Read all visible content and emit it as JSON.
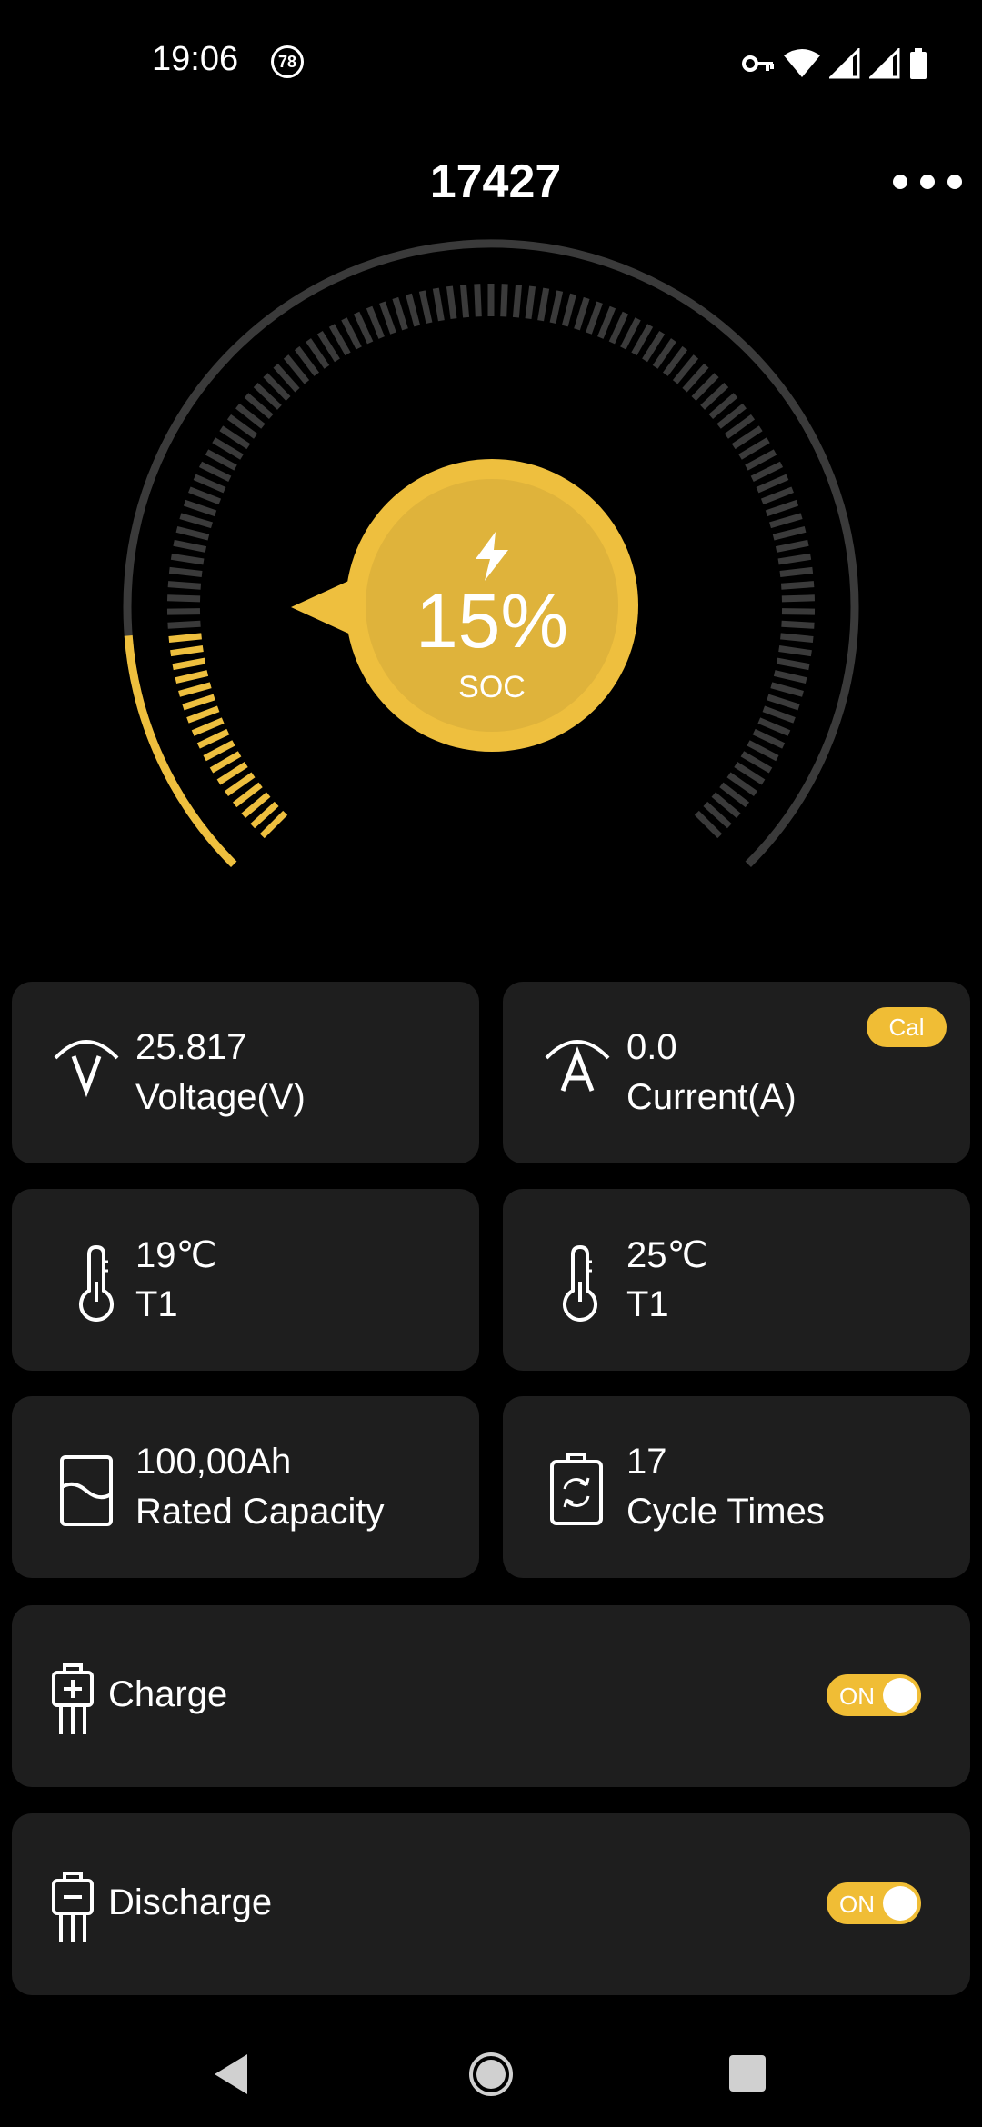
{
  "status_bar": {
    "time": "19:06",
    "notification_badge": "78",
    "icons": [
      "vpn-key-icon",
      "wifi-icon",
      "signal-icon",
      "signal-icon",
      "battery-icon"
    ]
  },
  "header": {
    "title": "17427",
    "menu_icon": "more-horizontal-icon"
  },
  "gauge": {
    "soc_value": "15%",
    "soc_label": "SOC",
    "soc_fraction": 0.15,
    "accent_color": "#eebf3e",
    "track_color": "#3a3a3a"
  },
  "cards": {
    "voltage": {
      "value": "25.817",
      "label": "Voltage(V)",
      "icon": "voltage-icon"
    },
    "current": {
      "value": "0.0",
      "label": "Current(A)",
      "icon": "current-icon",
      "badge": "Cal"
    },
    "temp1": {
      "value": "19℃",
      "label": "T1",
      "icon": "thermometer-icon"
    },
    "temp2": {
      "value": "25℃",
      "label": "T1",
      "icon": "thermometer-icon"
    },
    "capacity": {
      "value": "100,00Ah",
      "label": "Rated Capacity",
      "icon": "capacity-icon"
    },
    "cycles": {
      "value": "17",
      "label": "Cycle Times",
      "icon": "cycle-battery-icon"
    }
  },
  "switches": {
    "charge": {
      "label": "Charge",
      "state": "ON",
      "icon": "charge-mosfet-icon"
    },
    "discharge": {
      "label": "Discharge",
      "state": "ON",
      "icon": "discharge-mosfet-icon"
    }
  },
  "nav_bar": {
    "items": [
      "back-icon",
      "home-icon",
      "recents-icon"
    ]
  }
}
